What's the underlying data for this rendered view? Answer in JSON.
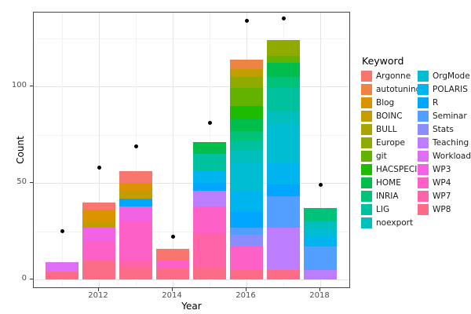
{
  "chart_data": {
    "type": "bar",
    "stacked": true,
    "title": "",
    "xlabel": "Year",
    "ylabel": "Count",
    "legend_title": "Keyword",
    "legend_position": "right",
    "x": [
      2011,
      2012,
      2013,
      2014,
      2015,
      2016,
      2017,
      2018
    ],
    "x_tick_labels": [
      "2012",
      "2014",
      "2016",
      "2018"
    ],
    "y_ticks": [
      0,
      50,
      100
    ],
    "y_minor_ticks": [
      25,
      75,
      125
    ],
    "ylim": [
      0,
      140
    ],
    "grid": true,
    "keywords": [
      {
        "name": "Argonne",
        "color": "#F8766D"
      },
      {
        "name": "autotuning",
        "color": "#EE8343"
      },
      {
        "name": "Blog",
        "color": "#DC9300"
      },
      {
        "name": "BOINC",
        "color": "#C39C00"
      },
      {
        "name": "BULL",
        "color": "#A9A400"
      },
      {
        "name": "Europe",
        "color": "#91AA00"
      },
      {
        "name": "git",
        "color": "#64B200"
      },
      {
        "name": "HACSPECIS",
        "color": "#1DBC00"
      },
      {
        "name": "HOME",
        "color": "#00BD4C"
      },
      {
        "name": "INRIA",
        "color": "#00C379"
      },
      {
        "name": "LIG",
        "color": "#00C19E"
      },
      {
        "name": "noexport",
        "color": "#00BFBC"
      },
      {
        "name": "OrgMode",
        "color": "#00BDD4"
      },
      {
        "name": "POLARIS",
        "color": "#00B4EF"
      },
      {
        "name": "R",
        "color": "#00A6FF"
      },
      {
        "name": "Seminar",
        "color": "#539FFF"
      },
      {
        "name": "Stats",
        "color": "#8A8DFF"
      },
      {
        "name": "Teaching",
        "color": "#BC7EFF"
      },
      {
        "name": "Workload",
        "color": "#DD6FF4"
      },
      {
        "name": "WP3",
        "color": "#F163E3"
      },
      {
        "name": "WP4",
        "color": "#FD61C8"
      },
      {
        "name": "WP7",
        "color": "#FF64A8"
      },
      {
        "name": "WP8",
        "color": "#FB6C87"
      }
    ],
    "bars": [
      {
        "year": 2011,
        "total": 9,
        "segments": [
          {
            "keyword": "Workload",
            "value": 5
          },
          {
            "keyword": "WP8",
            "value": 4
          }
        ]
      },
      {
        "year": 2012,
        "total": 40,
        "segments": [
          {
            "keyword": "Argonne",
            "value": 4
          },
          {
            "keyword": "Blog",
            "value": 6
          },
          {
            "keyword": "BOINC",
            "value": 3
          },
          {
            "keyword": "WP3",
            "value": 7
          },
          {
            "keyword": "WP4",
            "value": 10
          },
          {
            "keyword": "WP8",
            "value": 10
          }
        ]
      },
      {
        "year": 2013,
        "total": 56,
        "segments": [
          {
            "keyword": "Argonne",
            "value": 6
          },
          {
            "keyword": "Blog",
            "value": 4
          },
          {
            "keyword": "BOINC",
            "value": 4
          },
          {
            "keyword": "R",
            "value": 4
          },
          {
            "keyword": "WP3",
            "value": 8
          },
          {
            "keyword": "WP4",
            "value": 20
          },
          {
            "keyword": "WP7",
            "value": 4
          },
          {
            "keyword": "WP8",
            "value": 6
          }
        ]
      },
      {
        "year": 2014,
        "total": 16,
        "segments": [
          {
            "keyword": "Argonne",
            "value": 6
          },
          {
            "keyword": "WP4",
            "value": 4
          },
          {
            "keyword": "WP8",
            "value": 6
          }
        ]
      },
      {
        "year": 2015,
        "total": 71,
        "segments": [
          {
            "keyword": "HOME",
            "value": 6
          },
          {
            "keyword": "LIG",
            "value": 9
          },
          {
            "keyword": "POLARIS",
            "value": 6
          },
          {
            "keyword": "R",
            "value": 4
          },
          {
            "keyword": "Teaching",
            "value": 8
          },
          {
            "keyword": "WP4",
            "value": 14
          },
          {
            "keyword": "WP7",
            "value": 18
          },
          {
            "keyword": "WP8",
            "value": 6
          }
        ]
      },
      {
        "year": 2016,
        "total": 114,
        "segments": [
          {
            "keyword": "autotuning",
            "value": 5
          },
          {
            "keyword": "BOINC",
            "value": 4
          },
          {
            "keyword": "Europe",
            "value": 6
          },
          {
            "keyword": "git",
            "value": 9
          },
          {
            "keyword": "HACSPECIS",
            "value": 7
          },
          {
            "keyword": "HOME",
            "value": 6
          },
          {
            "keyword": "INRIA",
            "value": 5
          },
          {
            "keyword": "LIG",
            "value": 5
          },
          {
            "keyword": "noexport",
            "value": 7
          },
          {
            "keyword": "OrgMode",
            "value": 14
          },
          {
            "keyword": "POLARIS",
            "value": 11
          },
          {
            "keyword": "R",
            "value": 8
          },
          {
            "keyword": "Seminar",
            "value": 4
          },
          {
            "keyword": "Stats",
            "value": 6
          },
          {
            "keyword": "WP4",
            "value": 12
          },
          {
            "keyword": "WP8",
            "value": 5
          }
        ]
      },
      {
        "year": 2017,
        "total": 124,
        "segments": [
          {
            "keyword": "Europe",
            "value": 8
          },
          {
            "keyword": "git",
            "value": 4
          },
          {
            "keyword": "HOME",
            "value": 7
          },
          {
            "keyword": "INRIA",
            "value": 6
          },
          {
            "keyword": "LIG",
            "value": 12
          },
          {
            "keyword": "noexport",
            "value": 6
          },
          {
            "keyword": "OrgMode",
            "value": 21
          },
          {
            "keyword": "POLARIS",
            "value": 11
          },
          {
            "keyword": "R",
            "value": 6
          },
          {
            "keyword": "Seminar",
            "value": 16
          },
          {
            "keyword": "Teaching",
            "value": 22
          },
          {
            "keyword": "WP8",
            "value": 5
          }
        ]
      },
      {
        "year": 2018,
        "total": 37,
        "segments": [
          {
            "keyword": "INRIA",
            "value": 7
          },
          {
            "keyword": "noexport",
            "value": 4
          },
          {
            "keyword": "OrgMode",
            "value": 4
          },
          {
            "keyword": "POLARIS",
            "value": 5
          },
          {
            "keyword": "Seminar",
            "value": 12
          },
          {
            "keyword": "Teaching",
            "value": 5
          }
        ]
      }
    ],
    "points": {
      "shape": "filled-circle",
      "color": "#000000",
      "values": [
        {
          "year": 2011,
          "count": 25
        },
        {
          "year": 2012,
          "count": 58
        },
        {
          "year": 2013,
          "count": 69
        },
        {
          "year": 2014,
          "count": 22
        },
        {
          "year": 2015,
          "count": 81
        },
        {
          "year": 2016,
          "count": 134
        },
        {
          "year": 2017,
          "count": 135
        },
        {
          "year": 2018,
          "count": 49
        }
      ]
    }
  }
}
